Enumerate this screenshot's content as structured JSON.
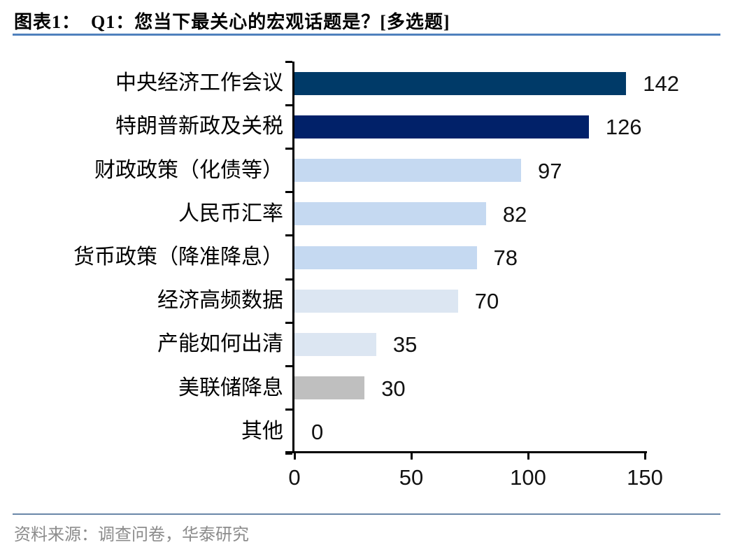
{
  "header": {
    "title": "图表1：  Q1：您当下最关心的宏观话题是？[多选题]"
  },
  "footer": {
    "source": "资料来源：调查问卷，华泰研究"
  },
  "colors": {
    "title_rule": "#4F81BD",
    "source_rule": "#6A87A8",
    "axis": "#000000",
    "navy_dark": "#003A68",
    "navy_deep": "#012169",
    "blue_light": "#C5D9F1",
    "blue_lighter": "#DCE6F2",
    "gray": "#BFBFBF"
  },
  "chart_data": {
    "type": "bar",
    "orientation": "horizontal",
    "title": "Q1：您当下最关心的宏观话题是？[多选题]",
    "categories": [
      "中央经济工作会议",
      "特朗普新政及关税",
      "财政政策（化债等）",
      "人民币汇率",
      "货币政策（降准降息）",
      "经济高频数据",
      "产能如何出清",
      "美联储降息",
      "其他"
    ],
    "values": [
      142,
      126,
      97,
      82,
      78,
      70,
      35,
      30,
      0
    ],
    "data_labels": [
      "142",
      "126",
      "97",
      "82",
      "78",
      "70",
      "35",
      "30",
      "0"
    ],
    "bar_colors": [
      "#003A68",
      "#012169",
      "#C5D9F1",
      "#C5D9F1",
      "#C5D9F1",
      "#DCE6F2",
      "#DCE6F2",
      "#BFBFBF",
      "none"
    ],
    "xticks": [
      "0",
      "50",
      "100",
      "150"
    ],
    "xtick_values": [
      0,
      50,
      100,
      150
    ],
    "xlim": [
      0,
      150
    ],
    "grid": false,
    "legend": null,
    "value_labels_shown": true
  }
}
